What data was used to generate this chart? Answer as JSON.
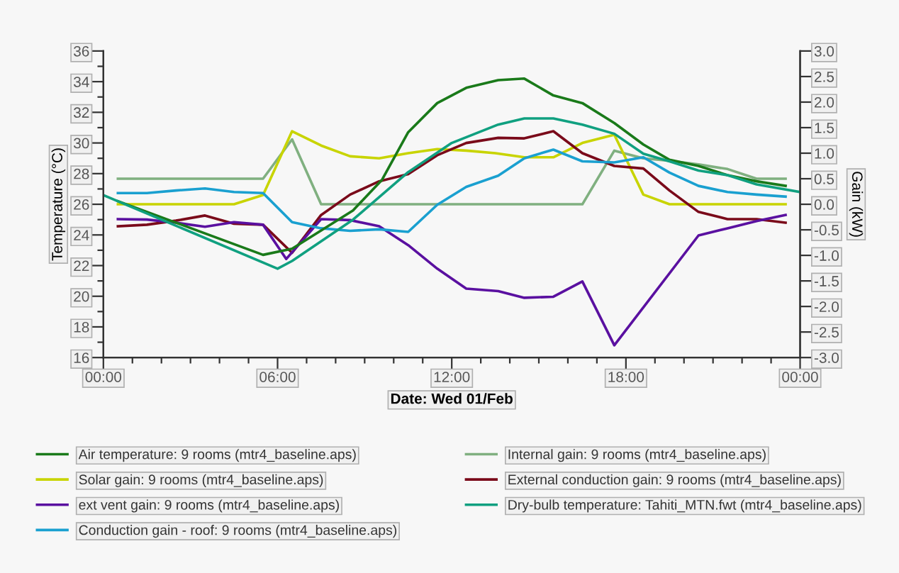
{
  "chart_data": {
    "type": "line",
    "xlabel": "Date: Wed 01/Feb",
    "ylabel": "Temperature (°C)",
    "y2label": "Gain (kW)",
    "xlim": [
      0,
      24
    ],
    "xticks": [
      {
        "value": 0,
        "label": "00:00"
      },
      {
        "value": 1,
        "label": null
      },
      {
        "value": 2,
        "label": null
      },
      {
        "value": 3,
        "label": null
      },
      {
        "value": 4,
        "label": null
      },
      {
        "value": 5,
        "label": null
      },
      {
        "value": 6,
        "label": "06:00"
      },
      {
        "value": 7,
        "label": null
      },
      {
        "value": 8,
        "label": null
      },
      {
        "value": 9,
        "label": null
      },
      {
        "value": 10,
        "label": null
      },
      {
        "value": 11,
        "label": null
      },
      {
        "value": 12,
        "label": "12:00"
      },
      {
        "value": 13,
        "label": null
      },
      {
        "value": 14,
        "label": null
      },
      {
        "value": 15,
        "label": null
      },
      {
        "value": 16,
        "label": null
      },
      {
        "value": 17,
        "label": null
      },
      {
        "value": 18,
        "label": "18:00"
      },
      {
        "value": 19,
        "label": null
      },
      {
        "value": 20,
        "label": null
      },
      {
        "value": 21,
        "label": null
      },
      {
        "value": 22,
        "label": null
      },
      {
        "value": 23,
        "label": null
      },
      {
        "value": 24,
        "label": "00:00"
      }
    ],
    "ylim": [
      16,
      36
    ],
    "yticks": [
      16,
      {
        "value": 17,
        "label": null
      },
      18,
      {
        "value": 19,
        "label": null
      },
      20,
      {
        "value": 21,
        "label": null
      },
      22,
      {
        "value": 23,
        "label": null
      },
      24,
      {
        "value": 25,
        "label": null
      },
      26,
      {
        "value": 27,
        "label": null
      },
      28,
      {
        "value": 29,
        "label": null
      },
      30,
      {
        "value": 31,
        "label": null
      },
      32,
      {
        "value": 33,
        "label": null
      },
      34,
      {
        "value": 35,
        "label": null
      },
      36
    ],
    "y2lim": [
      -3.0,
      3.0
    ],
    "y2ticks": [
      {
        "value": -3.0,
        "label": "-3.0"
      },
      {
        "value": -2.5,
        "label": "-2.5"
      },
      {
        "value": -2.0,
        "label": "-2.0"
      },
      {
        "value": -1.5,
        "label": "-1.5"
      },
      {
        "value": -1.0,
        "label": "-1.0"
      },
      {
        "value": -0.5,
        "label": "-0.5"
      },
      {
        "value": 0.0,
        "label": "0.0"
      },
      {
        "value": 0.5,
        "label": "0.5"
      },
      {
        "value": 1.0,
        "label": "1.0"
      },
      {
        "value": 1.5,
        "label": "1.5"
      },
      {
        "value": 2.0,
        "label": "2.0"
      },
      {
        "value": 2.5,
        "label": "2.5"
      },
      {
        "value": 3.0,
        "label": "3.0"
      }
    ],
    "grid": false,
    "legend": "bottom",
    "marker": "none",
    "line_style": "solid",
    "series": [
      {
        "name": "Air temperature: 9 rooms (mtr4_baseline.aps)",
        "color": "#1a7a1a",
        "x": [
          0.5,
          5.5,
          6.5,
          8.6,
          9.6,
          10.5,
          11.5,
          12.5,
          13.6,
          14.5,
          15.5,
          16.5,
          17.6,
          18.6,
          19.5,
          20.5,
          21.5,
          22.5,
          23.5
        ],
        "values": [
          26.2,
          22.7,
          23.1,
          25.6,
          27.6,
          30.7,
          32.6,
          33.6,
          34.1,
          34.2,
          33.1,
          32.6,
          31.3,
          29.9,
          28.9,
          28.5,
          27.9,
          27.5,
          27.2
        ]
      },
      {
        "name": "Internal gain: 9 rooms (mtr4_baseline.aps)",
        "color": "#80b080",
        "axis": "y2",
        "x": [
          0.5,
          5.5,
          6.5,
          7.5,
          16.5,
          17.6,
          18.6,
          19.5,
          20.5,
          21.5,
          22.5,
          23.5
        ],
        "values": [
          0.5,
          0.5,
          1.27,
          0.0,
          0.0,
          1.05,
          0.9,
          0.85,
          0.78,
          0.69,
          0.5,
          0.5
        ]
      },
      {
        "name": "Solar gain: 9 rooms (mtr4_baseline.aps)",
        "color": "#c8d400",
        "axis": "y2",
        "x": [
          0.5,
          4.5,
          5.5,
          6.5,
          7.5,
          8.5,
          9.5,
          10.5,
          11.5,
          12.5,
          13.5,
          14.5,
          15.5,
          16.5,
          17.6,
          18.6,
          19.5,
          20.5,
          23.5
        ],
        "values": [
          0.0,
          0.0,
          0.18,
          1.43,
          1.15,
          0.94,
          0.9,
          1.0,
          1.08,
          1.05,
          1.0,
          0.92,
          0.92,
          1.2,
          1.36,
          0.19,
          0.0,
          0.0,
          0.0
        ]
      },
      {
        "name": "External conduction gain: 9 rooms (mtr4_baseline.aps)",
        "color": "#7a0a1a",
        "axis": "y2",
        "x": [
          0.5,
          1.5,
          2.5,
          3.5,
          4.5,
          5.5,
          6.5,
          7.5,
          8.5,
          9.5,
          10.5,
          11.5,
          12.5,
          13.6,
          14.5,
          15.5,
          16.5,
          17.6,
          18.6,
          19.5,
          20.5,
          21.5,
          22.5,
          23.5
        ],
        "values": [
          -0.43,
          -0.4,
          -0.32,
          -0.22,
          -0.38,
          -0.4,
          -0.95,
          -0.21,
          0.19,
          0.45,
          0.59,
          0.96,
          1.2,
          1.3,
          1.29,
          1.43,
          1.0,
          0.75,
          0.7,
          0.27,
          -0.15,
          -0.29,
          -0.29,
          -0.36
        ]
      },
      {
        "name": "ext vent gain: 9 rooms (mtr4_baseline.aps)",
        "color": "#5a10a0",
        "axis": "y2",
        "x": [
          0.5,
          1.5,
          2.5,
          3.5,
          4.5,
          5.5,
          6.3,
          7.5,
          8.5,
          9.5,
          10.5,
          11.5,
          12.5,
          13.6,
          14.5,
          15.5,
          16.5,
          17.6,
          20.5,
          21.5,
          22.5,
          23.5
        ],
        "values": [
          -0.29,
          -0.3,
          -0.36,
          -0.44,
          -0.35,
          -0.4,
          -1.07,
          -0.29,
          -0.31,
          -0.43,
          -0.8,
          -1.26,
          -1.65,
          -1.7,
          -1.83,
          -1.81,
          -1.51,
          -2.76,
          -0.61,
          -0.47,
          -0.33,
          -0.21
        ]
      },
      {
        "name": "Dry-bulb temperature: Tahiti_MTN.fwt (mtr4_baseline.aps)",
        "color": "#10a080",
        "x": [
          0,
          6.0,
          6.5,
          8.6,
          10.5,
          12.0,
          13.6,
          14.5,
          15.5,
          16.5,
          17.6,
          18.6,
          19.5,
          20.5,
          21.5,
          22.5,
          24
        ],
        "values": [
          26.6,
          21.8,
          22.3,
          25.0,
          28.1,
          30.0,
          31.2,
          31.6,
          31.6,
          31.2,
          30.6,
          29.3,
          28.8,
          28.2,
          27.9,
          27.3,
          26.8
        ]
      },
      {
        "name": "Conduction gain - roof: 9 rooms (mtr4_baseline.aps)",
        "color": "#1aa0d0",
        "axis": "y2",
        "x": [
          0.5,
          1.5,
          2.5,
          3.5,
          4.5,
          5.5,
          6.5,
          7.5,
          8.5,
          9.5,
          10.5,
          11.5,
          12.5,
          13.6,
          14.5,
          15.5,
          16.5,
          17.6,
          18.6,
          19.5,
          20.5,
          21.5,
          22.5,
          23.5
        ],
        "values": [
          0.22,
          0.22,
          0.27,
          0.31,
          0.24,
          0.22,
          -0.35,
          -0.47,
          -0.52,
          -0.49,
          -0.54,
          -0.01,
          0.34,
          0.56,
          0.9,
          1.07,
          0.84,
          0.82,
          0.92,
          0.62,
          0.36,
          0.24,
          0.19,
          0.15
        ]
      }
    ]
  }
}
